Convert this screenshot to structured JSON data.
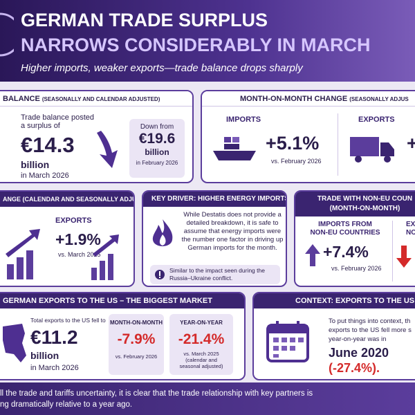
{
  "header": {
    "title_lines": [
      "GERMAN TRADE SURPLUS",
      "NARROWS CONSIDERABLY IN MARCH"
    ],
    "subtitle": "Higher imports, weaker exports—trade balance drops sharply"
  },
  "balance": {
    "heading": "BALANCE",
    "qualifier": "(SEASONALLY AND CALENDAR ADJUSTED)",
    "intro": "Trade balance posted a surplus of",
    "value": "€14.3",
    "unit": "billion",
    "period": "in March 2026",
    "previous": {
      "label": "Down from",
      "value": "€19.6",
      "unit": "billion",
      "period": "in February 2026"
    }
  },
  "mom": {
    "heading": "MONTH-ON-MONTH CHANGE",
    "qualifier": "(SEASONALLY ADJUS",
    "imports": {
      "label": "IMPORTS",
      "value": "+5.1%",
      "period": "vs. February 2026"
    },
    "exports": {
      "label": "EXPORTS",
      "value": "+"
    }
  },
  "yoy": {
    "heading": "ANGE (CALENDAR AND SEASONALLY ADJUSTED)",
    "exports": {
      "label": "EXPORTS",
      "value": "+1.9%",
      "period": "vs. March 2025"
    }
  },
  "driver": {
    "heading": "KEY DRIVER: HIGHER ENERGY IMPORTS",
    "text": "While Destatis does not provide a detailed breakdown, it is safe to assume that energy imports were the number one factor in driving up German imports for the month.",
    "note": "Similar to the impact seen during the Russia–Ukraine conflict."
  },
  "non_eu": {
    "heading_lines": [
      "TRADE WITH NON-EU COUN",
      "(MONTH-ON-MONTH)"
    ],
    "imports": {
      "label_lines": [
        "IMPORTS FROM",
        "NON-EU COUNTRIES"
      ],
      "value": "+7.4%",
      "period": "vs. February 2026"
    },
    "exports": {
      "label_lines": [
        "EX",
        "NON-"
      ]
    }
  },
  "us": {
    "heading": "GERMAN EXPORTS TO THE US – THE BIGGEST MARKET",
    "intro": "Total exports to the US fell to",
    "value": "€11.2",
    "unit": "billion",
    "period": "in March 2026",
    "mom": {
      "label": "MONTH-ON-MONTH",
      "value": "-7.9%",
      "period": "vs. February 2026"
    },
    "yoy": {
      "label": "YEAR-ON-YEAR",
      "value": "-21.4%",
      "period": "vs. March 2025 (calendar and seasonal adjusted)"
    }
  },
  "context": {
    "heading": "CONTEXT: EXPORTS TO THE US",
    "lines": [
      "To put things into context, th",
      "exports to the US fell more s",
      "year-on-year was in"
    ],
    "date": "June 2020",
    "value": "(-27.4%)."
  },
  "footer": {
    "lines": [
      "ll the trade and tariffs uncertainty, it is clear that the trade relationship with key partners is",
      "ng dramatically relative to a year ago."
    ]
  }
}
